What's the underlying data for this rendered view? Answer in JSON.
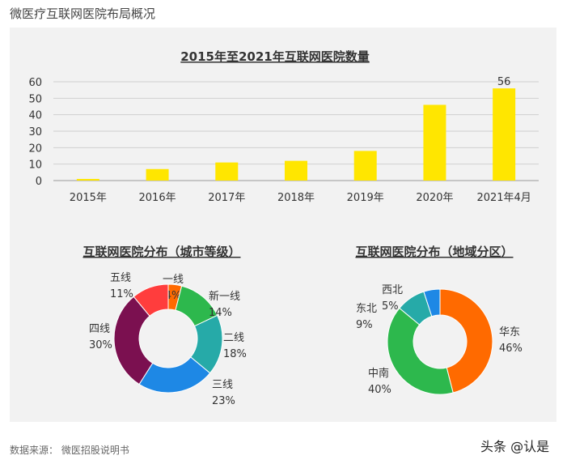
{
  "page_title": "微医疗互联网医院布局概况",
  "source": "数据来源：  微医招股说明书",
  "watermark": "头条 @认是",
  "chart_data": [
    {
      "type": "bar",
      "title": "2015年至2021年互联网医院数量",
      "categories": [
        "2015年",
        "2016年",
        "2017年",
        "2018年",
        "2019年",
        "2020年",
        "2021年4月"
      ],
      "values": [
        1,
        7,
        11,
        12,
        18,
        46,
        56
      ],
      "data_labels": {
        "6": "56"
      },
      "ylim": [
        0,
        60
      ],
      "yticks": [
        0,
        10,
        20,
        30,
        40,
        50,
        60
      ],
      "grid": true,
      "color": "#ffe600"
    },
    {
      "type": "pie",
      "title": "互联网医院分布（城市等级）",
      "slices": [
        {
          "name": "一线",
          "value": 4,
          "label": "4%",
          "color": "#ff6a00"
        },
        {
          "name": "新一线",
          "value": 14,
          "label": "14%",
          "color": "#2db84d"
        },
        {
          "name": "二线",
          "value": 18,
          "label": "18%",
          "color": "#26aaa8"
        },
        {
          "name": "三线",
          "value": 23,
          "label": "23%",
          "color": "#1e88e5"
        },
        {
          "name": "四线",
          "value": 30,
          "label": "30%",
          "color": "#7b1050"
        },
        {
          "name": "五线",
          "value": 11,
          "label": "11%",
          "color": "#ff3d3d"
        }
      ]
    },
    {
      "type": "pie",
      "title": "互联网医院分布（地域分区）",
      "slices": [
        {
          "name": "华东",
          "value": 46,
          "label": "46%",
          "color": "#ff6a00"
        },
        {
          "name": "中南",
          "value": 40,
          "label": "40%",
          "color": "#2db84d"
        },
        {
          "name": "东北",
          "value": 9,
          "label": "9%",
          "color": "#26aaa8"
        },
        {
          "name": "西北",
          "value": 5,
          "label": "5%",
          "color": "#1e88e5"
        }
      ]
    }
  ]
}
